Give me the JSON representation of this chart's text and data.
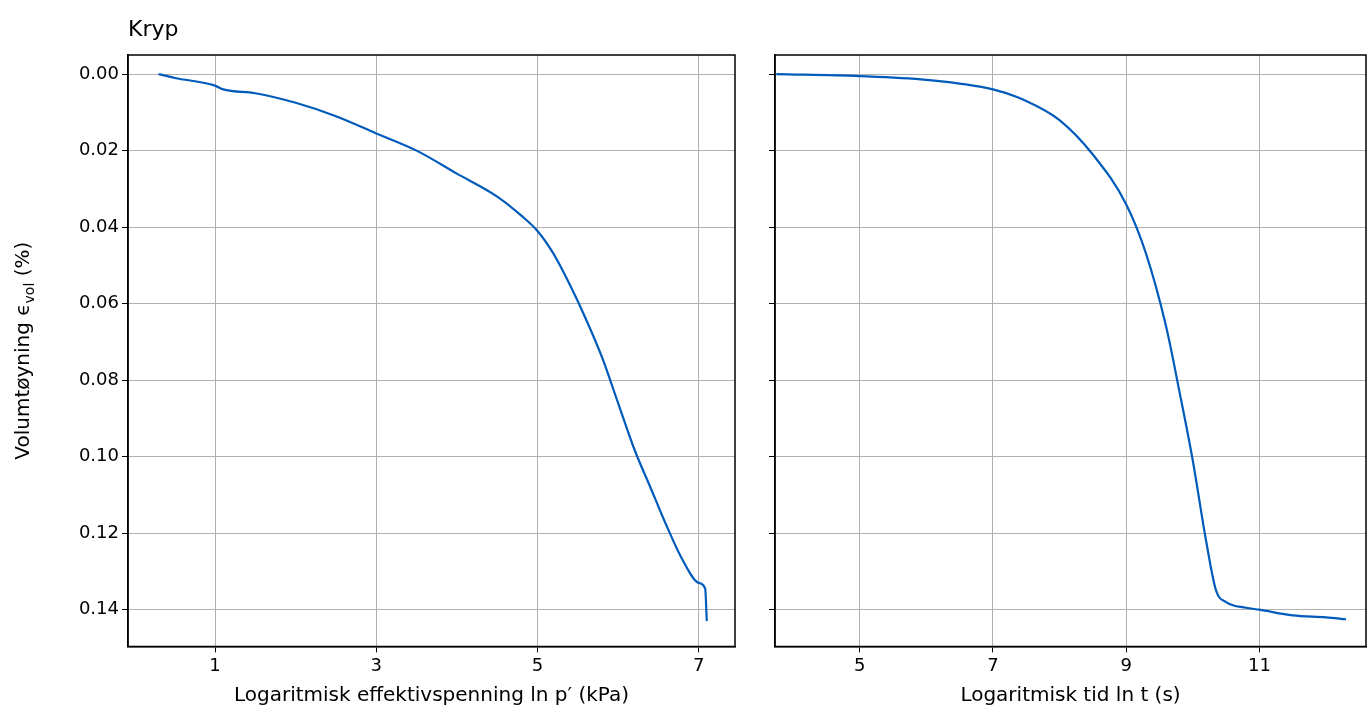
{
  "chart_data": [
    {
      "type": "line",
      "title": "Kryp",
      "xlabel": "Logaritmisk effektivspenning ln p′ (kPa)",
      "ylabel": "Volumtøyning ϵ$_{vol}$ (%)",
      "xlim": [
        -0.08,
        7.45
      ],
      "xticks": [
        1,
        3,
        5,
        7
      ],
      "ylim": [
        0.1496,
        -0.005
      ],
      "yticks": [
        {
          "value": 0,
          "label": "0.00"
        },
        {
          "value": 0.02,
          "label": "0.02"
        },
        {
          "value": 0.04,
          "label": "0.04"
        },
        {
          "value": 0.06,
          "label": "0.06"
        },
        {
          "value": 0.08,
          "label": "0.08"
        },
        {
          "value": 0.1,
          "label": "0.10"
        },
        {
          "value": 0.12,
          "label": "0.12"
        },
        {
          "value": 0.14,
          "label": "0.14"
        }
      ],
      "grid": true,
      "series": [
        {
          "color": "#005bbb",
          "x": [
            0.3,
            0.5,
            1.0,
            1.1,
            1.5,
            2.0,
            2.5,
            3.0,
            3.5,
            4.0,
            4.5,
            4.8,
            5.0,
            5.2,
            5.4,
            5.6,
            5.8,
            6.0,
            6.2,
            6.4,
            6.6,
            6.8,
            7.0,
            7.08,
            7.1
          ],
          "values": [
            0.0,
            0.001,
            0.003,
            0.004,
            0.005,
            0.0075,
            0.011,
            0.0155,
            0.02,
            0.026,
            0.032,
            0.037,
            0.041,
            0.047,
            0.055,
            0.064,
            0.074,
            0.086,
            0.098,
            0.108,
            0.118,
            0.127,
            0.133,
            0.1345,
            0.143
          ]
        }
      ]
    },
    {
      "type": "line",
      "xlabel": "Logaritmisk tid ln t (s)",
      "xlim": [
        3.73,
        12.6
      ],
      "xticks": [
        5,
        7,
        9,
        11
      ],
      "ylim": [
        0.1496,
        -0.005
      ],
      "yticks": [
        {
          "value": 0,
          "label": null
        },
        {
          "value": 0.02,
          "label": null
        },
        {
          "value": 0.04,
          "label": null
        },
        {
          "value": 0.06,
          "label": null
        },
        {
          "value": 0.08,
          "label": null
        },
        {
          "value": 0.1,
          "label": null
        },
        {
          "value": 0.12,
          "label": null
        },
        {
          "value": 0.14,
          "label": null
        }
      ],
      "grid": true,
      "tick_labels": "x",
      "series": [
        {
          "color": "#005bbb",
          "x": [
            3.75,
            5,
            6,
            7,
            7.5,
            8,
            8.5,
            9,
            9.3,
            9.6,
            9.8,
            10.0,
            10.2,
            10.35,
            10.5,
            10.8,
            11,
            11.5,
            12,
            12.3
          ],
          "values": [
            0.0,
            0.0005,
            0.0015,
            0.004,
            0.007,
            0.012,
            0.021,
            0.034,
            0.047,
            0.066,
            0.083,
            0.101,
            0.122,
            0.135,
            0.138,
            0.1395,
            0.14,
            0.1415,
            0.142,
            0.1425
          ]
        }
      ]
    }
  ]
}
